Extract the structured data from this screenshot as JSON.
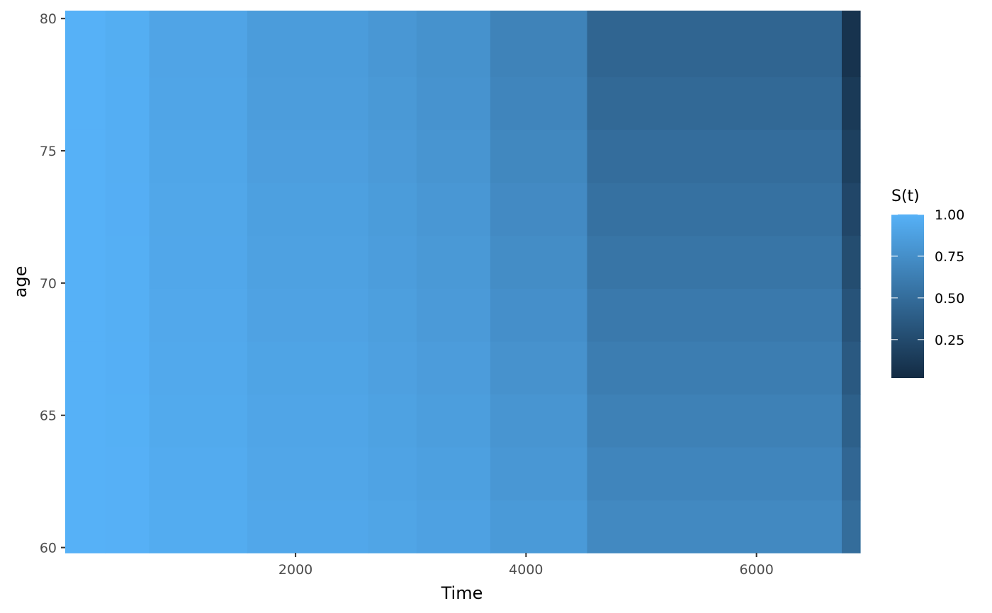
{
  "chart_data": {
    "type": "heatmap",
    "title": "",
    "xlabel": "Time",
    "ylabel": "age",
    "xlim": [
      1,
      6900
    ],
    "ylim": [
      59.8,
      80.3
    ],
    "x_ticks": [
      2000,
      4000,
      6000
    ],
    "y_ticks": [
      60,
      65,
      70,
      75,
      80
    ],
    "x_breaks": [
      1,
      350,
      730,
      1580,
      2630,
      3050,
      3690,
      4530,
      6740,
      6900
    ],
    "y_breaks": [
      59.8,
      61.8,
      63.8,
      65.8,
      67.8,
      69.8,
      71.8,
      73.8,
      75.8,
      77.8,
      80.3
    ],
    "surv_young": [
      1.0,
      0.995,
      0.96,
      0.93,
      0.91,
      0.885,
      0.83,
      0.705,
      0.5
    ],
    "surv_old": [
      1.0,
      0.975,
      0.905,
      0.845,
      0.81,
      0.77,
      0.66,
      0.445,
      0.08
    ],
    "legend": {
      "title": "S(t)",
      "range": [
        0.02,
        1.0
      ],
      "ticks": [
        1.0,
        0.75,
        0.5,
        0.25
      ],
      "tick_labels": [
        "1.00",
        "0.75",
        "0.50",
        "0.25"
      ]
    },
    "colors": {
      "low": "#132B43",
      "high": "#56B1F7",
      "tick": "#333333",
      "legend_tick": "#ffffff"
    }
  }
}
